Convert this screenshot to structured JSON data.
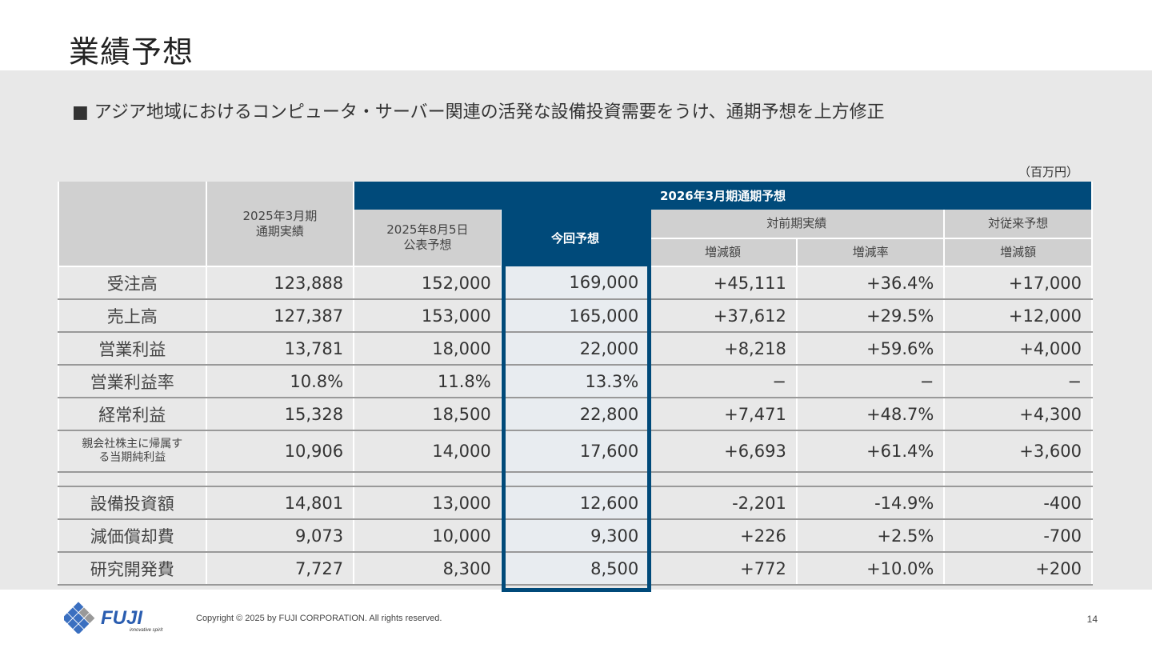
{
  "title": "業績予想",
  "bullet": "■ アジア地域におけるコンピュータ・サーバー関連の活発な設備投資需要をうけ、通期予想を上方修正",
  "unit": "（百万円）",
  "header": {
    "prev_actual": [
      "2025年3月期",
      "通期実績"
    ],
    "group": "2026年3月期通期予想",
    "announced": [
      "2025年8月5日",
      "公表予想"
    ],
    "current": "今回予想",
    "vs_prev": "対前期実績",
    "vs_plan": "対従来予想",
    "sub": [
      "増減額",
      "増減率",
      "増減額"
    ]
  },
  "rows": [
    {
      "label": "受注高",
      "values": [
        "123,888",
        "152,000",
        "169,000",
        "+45,111",
        "+36.4%",
        "+17,000"
      ]
    },
    {
      "label": "売上高",
      "values": [
        "127,387",
        "153,000",
        "165,000",
        "+37,612",
        "+29.5%",
        "+12,000"
      ]
    },
    {
      "label": "営業利益",
      "values": [
        "13,781",
        "18,000",
        "22,000",
        "+8,218",
        "+59.6%",
        "+4,000"
      ]
    },
    {
      "label": "営業利益率",
      "values": [
        "10.8%",
        "11.8%",
        "13.3%",
        "−",
        "−",
        "−"
      ]
    },
    {
      "label": "経常利益",
      "values": [
        "15,328",
        "18,500",
        "22,800",
        "+7,471",
        "+48.7%",
        "+4,300"
      ]
    },
    {
      "label": "親会社株主に帰属する当期純利益",
      "values": [
        "10,906",
        "14,000",
        "17,600",
        "+6,693",
        "+61.4%",
        "+3,600"
      ]
    },
    {
      "label": "設備投資額",
      "values": [
        "14,801",
        "13,000",
        "12,600",
        "-2,201",
        "-14.9%",
        "-400"
      ]
    },
    {
      "label": "減価償却費",
      "values": [
        "9,073",
        "10,000",
        "9,300",
        "+226",
        "+2.5%",
        "-700"
      ]
    },
    {
      "label": "研究開発費",
      "values": [
        "7,727",
        "8,300",
        "8,500",
        "+772",
        "+10.0%",
        "+200"
      ]
    }
  ],
  "footer": {
    "logo": "FUJI innovative spirit",
    "copyright": "Copyright © 2025 by FUJI CORPORATION. All rights reserved.",
    "page": "14"
  },
  "colors": {
    "accent": "#004a7a",
    "header_gray": "#d0d0d0",
    "band": "#e8e8e8"
  }
}
